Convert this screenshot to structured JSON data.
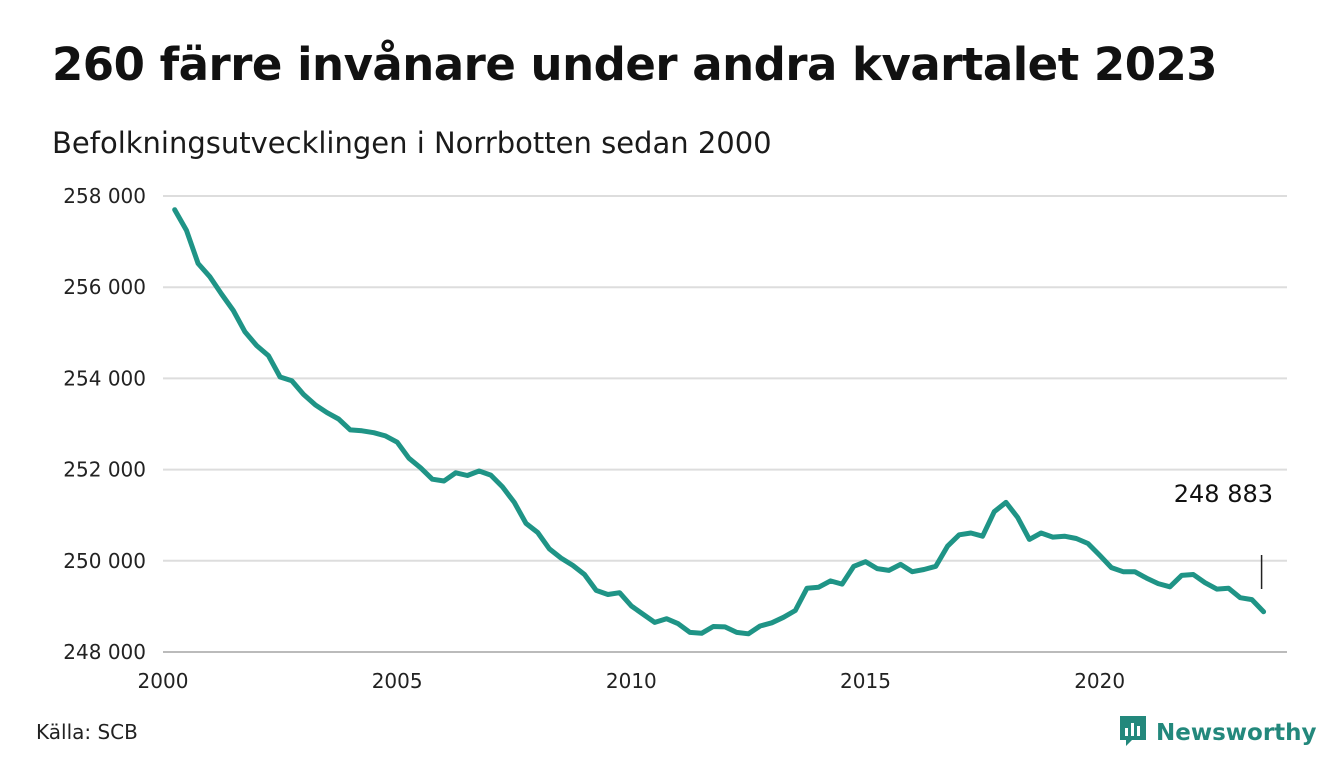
{
  "header": {
    "title": "260 färre invånare under andra kvartalet 2023",
    "subtitle": "Befolkningsutvecklingen i Norrbotten sedan 2000"
  },
  "footer": {
    "source": "Källa: SCB",
    "brand": "Newsworthy",
    "brand_icon": "newsworthy-logo-icon"
  },
  "colors": {
    "line": "#1f9486",
    "grid": "#dddddd",
    "brand": "#23887c"
  },
  "chart_data": {
    "type": "line",
    "title": "260 färre invånare under andra kvartalet 2023",
    "subtitle": "Befolkningsutvecklingen i Norrbotten sedan 2000",
    "xlabel": "",
    "ylabel": "",
    "xlim": [
      2000,
      2024
    ],
    "ylim": [
      248000,
      258000
    ],
    "grid": "horizontal",
    "x_ticks": [
      "2000",
      "2005",
      "2010",
      "2015",
      "2020"
    ],
    "y_ticks": [
      "258 000",
      "256 000",
      "254 000",
      "252 000",
      "250 000",
      "248 000"
    ],
    "annotation": {
      "label": "248 883",
      "x": 2023.5,
      "y": 248883
    },
    "series": [
      {
        "x": [
          2000.25,
          2000.5,
          2000.75,
          2001,
          2001.25,
          2001.5,
          2001.75,
          2002,
          2002.25,
          2002.5,
          2002.75,
          2003,
          2003.25,
          2003.5,
          2003.75,
          2004,
          2004.25,
          2004.5,
          2004.75,
          2005,
          2005.25,
          2005.5,
          2005.75,
          2006,
          2006.25,
          2006.5,
          2006.75,
          2007,
          2007.25,
          2007.5,
          2007.75,
          2008,
          2008.25,
          2008.5,
          2008.75,
          2009,
          2009.25,
          2009.5,
          2009.75,
          2010,
          2010.25,
          2010.5,
          2010.75,
          2011,
          2011.25,
          2011.5,
          2011.75,
          2012,
          2012.25,
          2012.5,
          2012.75,
          2013,
          2013.25,
          2013.5,
          2013.75,
          2014,
          2014.25,
          2014.5,
          2014.75,
          2015,
          2015.25,
          2015.5,
          2015.75,
          2016,
          2016.25,
          2016.5,
          2016.75,
          2017,
          2017.25,
          2017.5,
          2017.75,
          2018,
          2018.25,
          2018.5,
          2018.75,
          2019,
          2019.25,
          2019.5,
          2019.75,
          2020,
          2020.25,
          2020.5,
          2020.75,
          2021,
          2021.25,
          2021.5,
          2021.75,
          2022,
          2022.25,
          2022.5,
          2022.75,
          2023,
          2023.25,
          2023.5
        ],
        "y": [
          257700,
          257250,
          256520,
          256230,
          255850,
          255490,
          255020,
          254720,
          254500,
          254030,
          253950,
          253650,
          253420,
          253250,
          253110,
          252870,
          252850,
          252810,
          252740,
          252600,
          252250,
          252040,
          251790,
          251750,
          251930,
          251870,
          251970,
          251880,
          251620,
          251280,
          250820,
          250620,
          250260,
          250060,
          249900,
          249700,
          249350,
          249260,
          249300,
          249010,
          248830,
          248650,
          248730,
          248620,
          248430,
          248410,
          248560,
          248550,
          248430,
          248400,
          248570,
          248640,
          248760,
          248910,
          249400,
          249420,
          249560,
          249490,
          249880,
          249980,
          249830,
          249790,
          249920,
          249760,
          249810,
          249880,
          250320,
          250570,
          250610,
          250540,
          251080,
          251280,
          250950,
          250470,
          250610,
          250520,
          250540,
          250490,
          250380,
          250120,
          249850,
          249760,
          249760,
          249620,
          249500,
          249430,
          249680,
          249700,
          249520,
          249380,
          249400,
          249190,
          249150,
          248883
        ]
      }
    ]
  }
}
